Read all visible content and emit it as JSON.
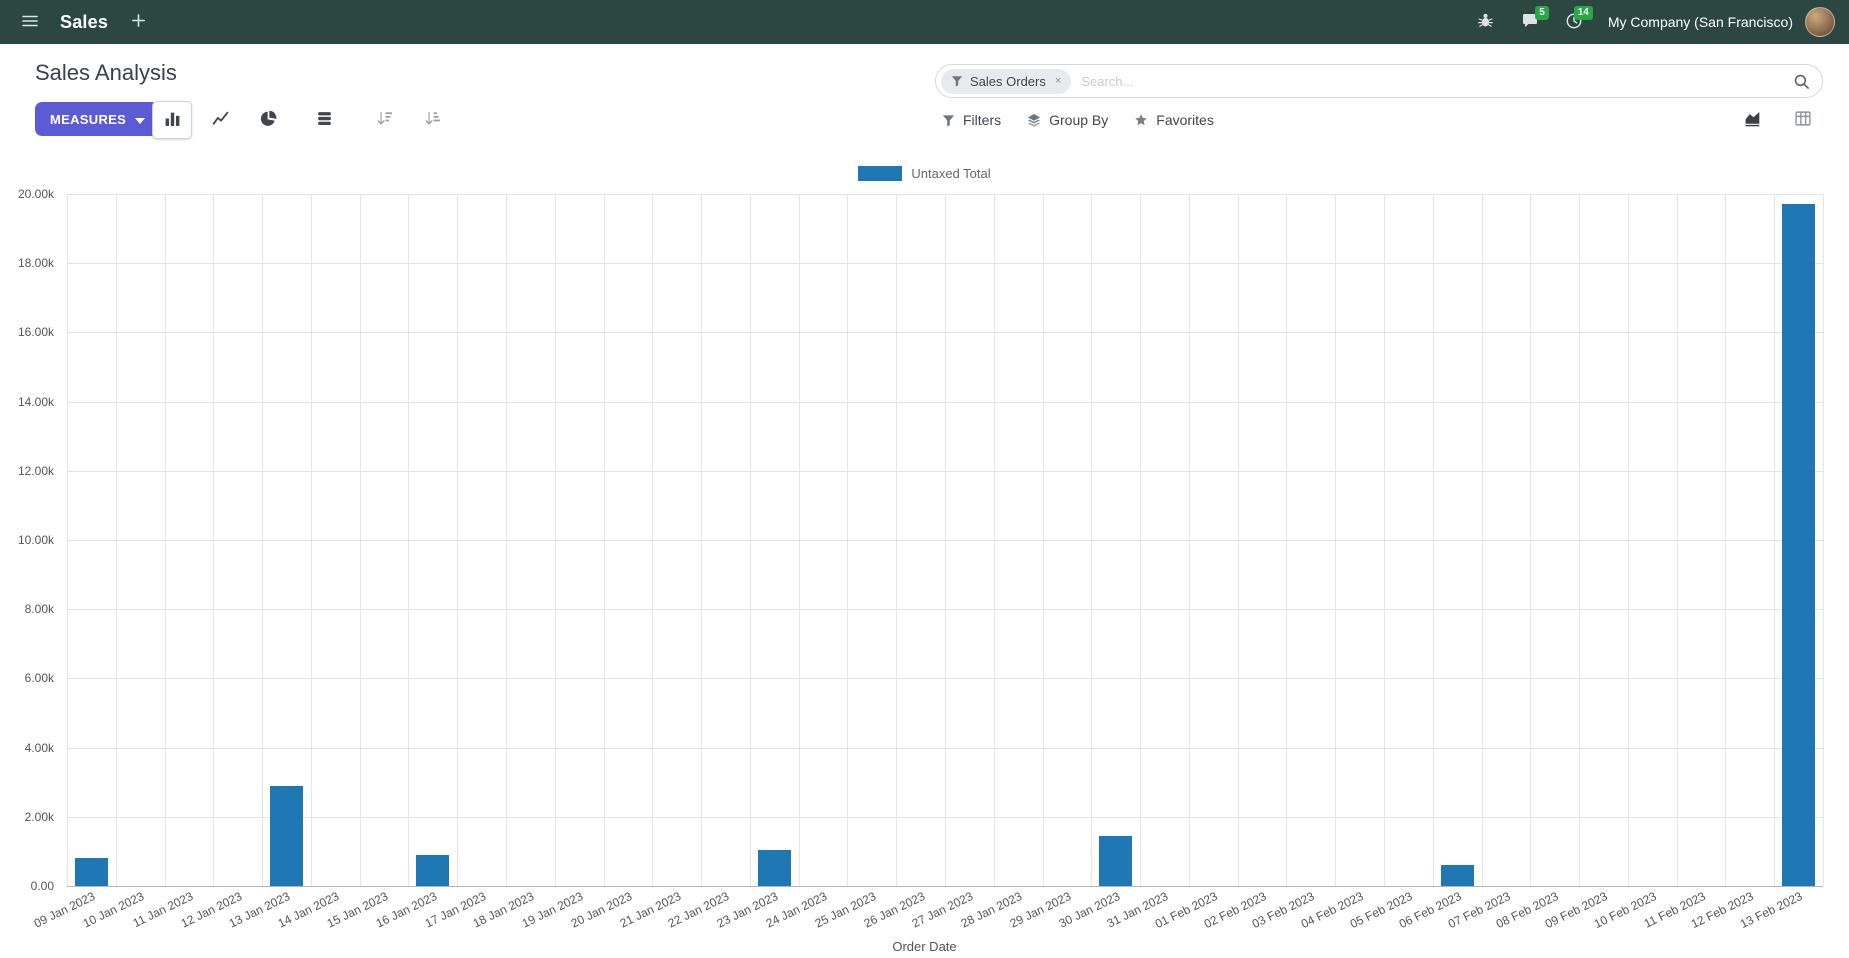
{
  "colors": {
    "navbar_bg": "#2b4740",
    "primary_button": "#5C5BD6",
    "badge_green": "#28a745",
    "bar_blue": "#1f77b4"
  },
  "navbar": {
    "app_name": "Sales",
    "company_name": "My Company (San Francisco)",
    "messages_badge": "5",
    "activities_badge": "14"
  },
  "control_panel": {
    "title": "Sales Analysis",
    "measures_button": "MEASURES",
    "search": {
      "facet_label": "Sales Orders",
      "facet_remove": "×",
      "placeholder": "Search..."
    },
    "filters_label": "Filters",
    "group_by_label": "Group By",
    "favorites_label": "Favorites"
  },
  "icons": {
    "menu": "hamburger",
    "add": "plus",
    "debug": "bug",
    "messages": "chat-bubble",
    "activities": "clock",
    "search": "magnifier",
    "facet": "funnel",
    "filters": "funnel",
    "group_by": "layers",
    "favorites": "star",
    "measures_caret": "caret-down",
    "view_toggles": [
      "bar-chart",
      "line-chart",
      "pie-chart",
      "stacked",
      "sort-desc",
      "sort-asc"
    ],
    "view_switchers": [
      "area-chart",
      "pivot-table"
    ]
  },
  "chart_data": {
    "type": "bar",
    "title": "",
    "legend": "Untaxed Total",
    "legend_position": "top",
    "grid": true,
    "series_color": "#1f77b4",
    "xlabel": "Order Date",
    "ylabel": "",
    "ylim": [
      0,
      20000
    ],
    "ytick_step": 2000,
    "ytick_labels": [
      "0.00",
      "2.00k",
      "4.00k",
      "6.00k",
      "8.00k",
      "10.00k",
      "12.00k",
      "14.00k",
      "16.00k",
      "18.00k",
      "20.00k"
    ],
    "categories": [
      "09 Jan 2023",
      "10 Jan 2023",
      "11 Jan 2023",
      "12 Jan 2023",
      "13 Jan 2023",
      "14 Jan 2023",
      "15 Jan 2023",
      "16 Jan 2023",
      "17 Jan 2023",
      "18 Jan 2023",
      "19 Jan 2023",
      "20 Jan 2023",
      "21 Jan 2023",
      "22 Jan 2023",
      "23 Jan 2023",
      "24 Jan 2023",
      "25 Jan 2023",
      "26 Jan 2023",
      "27 Jan 2023",
      "28 Jan 2023",
      "29 Jan 2023",
      "30 Jan 2023",
      "31 Jan 2023",
      "01 Feb 2023",
      "02 Feb 2023",
      "03 Feb 2023",
      "04 Feb 2023",
      "05 Feb 2023",
      "06 Feb 2023",
      "07 Feb 2023",
      "08 Feb 2023",
      "09 Feb 2023",
      "10 Feb 2023",
      "11 Feb 2023",
      "12 Feb 2023",
      "13 Feb 2023"
    ],
    "series": [
      {
        "name": "Untaxed Total",
        "values": [
          800,
          0,
          0,
          0,
          2900,
          0,
          0,
          900,
          0,
          0,
          0,
          0,
          0,
          0,
          1050,
          0,
          0,
          0,
          0,
          0,
          0,
          1450,
          0,
          0,
          0,
          0,
          0,
          0,
          620,
          0,
          0,
          0,
          0,
          0,
          0,
          19700
        ]
      }
    ]
  }
}
